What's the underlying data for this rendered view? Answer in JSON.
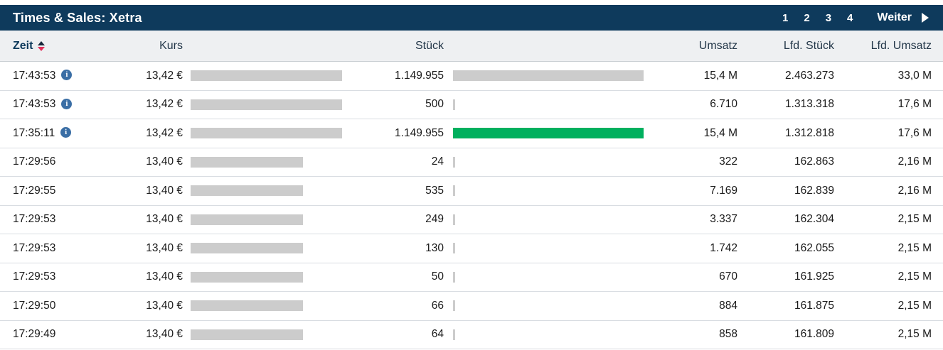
{
  "title_bar": {
    "title": "Times & Sales: Xetra",
    "pages": [
      "1",
      "2",
      "3",
      "4"
    ],
    "next_label": "Weiter"
  },
  "columns": {
    "zeit": "Zeit",
    "kurs": "Kurs",
    "stueck": "Stück",
    "umsatz": "Umsatz",
    "lfd_stueck": "Lfd. Stück",
    "lfd_umsatz": "Lfd. Umsatz"
  },
  "sort": {
    "column": "zeit",
    "direction": "desc"
  },
  "icons": {
    "info_glyph": "i",
    "sort_icon": "sort-up-down",
    "next_icon": "play-right-arrow"
  },
  "colors": {
    "navy": "#0e3a5c",
    "green": "#00b05e",
    "bar_gray": "#cccccc",
    "sort_red": "#e0315b",
    "info_blue": "#3a6ea5"
  },
  "rows": [
    {
      "time": "17:43:53",
      "info": true,
      "kurs": "13,42 €",
      "kurs_bar_pct": 100,
      "stueck": "1.149.955",
      "stueck_bar_pct": 100,
      "stueck_bar_color": "gray",
      "umsatz": "15,4 M",
      "lfd_stueck": "2.463.273",
      "lfd_umsatz": "33,0 M"
    },
    {
      "time": "17:43:53",
      "info": true,
      "kurs": "13,42 €",
      "kurs_bar_pct": 100,
      "stueck": "500",
      "stueck_bar_pct": 1,
      "stueck_bar_color": "gray",
      "umsatz": "6.710",
      "lfd_stueck": "1.313.318",
      "lfd_umsatz": "17,6 M"
    },
    {
      "time": "17:35:11",
      "info": true,
      "kurs": "13,42 €",
      "kurs_bar_pct": 100,
      "stueck": "1.149.955",
      "stueck_bar_pct": 100,
      "stueck_bar_color": "green",
      "umsatz": "15,4 M",
      "lfd_stueck": "1.312.818",
      "lfd_umsatz": "17,6 M"
    },
    {
      "time": "17:29:56",
      "info": false,
      "kurs": "13,40 €",
      "kurs_bar_pct": 74,
      "stueck": "24",
      "stueck_bar_pct": 1,
      "stueck_bar_color": "gray",
      "umsatz": "322",
      "lfd_stueck": "162.863",
      "lfd_umsatz": "2,16 M"
    },
    {
      "time": "17:29:55",
      "info": false,
      "kurs": "13,40 €",
      "kurs_bar_pct": 74,
      "stueck": "535",
      "stueck_bar_pct": 1,
      "stueck_bar_color": "gray",
      "umsatz": "7.169",
      "lfd_stueck": "162.839",
      "lfd_umsatz": "2,16 M"
    },
    {
      "time": "17:29:53",
      "info": false,
      "kurs": "13,40 €",
      "kurs_bar_pct": 74,
      "stueck": "249",
      "stueck_bar_pct": 1,
      "stueck_bar_color": "gray",
      "umsatz": "3.337",
      "lfd_stueck": "162.304",
      "lfd_umsatz": "2,15 M"
    },
    {
      "time": "17:29:53",
      "info": false,
      "kurs": "13,40 €",
      "kurs_bar_pct": 74,
      "stueck": "130",
      "stueck_bar_pct": 1,
      "stueck_bar_color": "gray",
      "umsatz": "1.742",
      "lfd_stueck": "162.055",
      "lfd_umsatz": "2,15 M"
    },
    {
      "time": "17:29:53",
      "info": false,
      "kurs": "13,40 €",
      "kurs_bar_pct": 74,
      "stueck": "50",
      "stueck_bar_pct": 1,
      "stueck_bar_color": "gray",
      "umsatz": "670",
      "lfd_stueck": "161.925",
      "lfd_umsatz": "2,15 M"
    },
    {
      "time": "17:29:50",
      "info": false,
      "kurs": "13,40 €",
      "kurs_bar_pct": 74,
      "stueck": "66",
      "stueck_bar_pct": 1,
      "stueck_bar_color": "gray",
      "umsatz": "884",
      "lfd_stueck": "161.875",
      "lfd_umsatz": "2,15 M"
    },
    {
      "time": "17:29:49",
      "info": false,
      "kurs": "13,40 €",
      "kurs_bar_pct": 74,
      "stueck": "64",
      "stueck_bar_pct": 1,
      "stueck_bar_color": "gray",
      "umsatz": "858",
      "lfd_stueck": "161.809",
      "lfd_umsatz": "2,15 M"
    }
  ]
}
